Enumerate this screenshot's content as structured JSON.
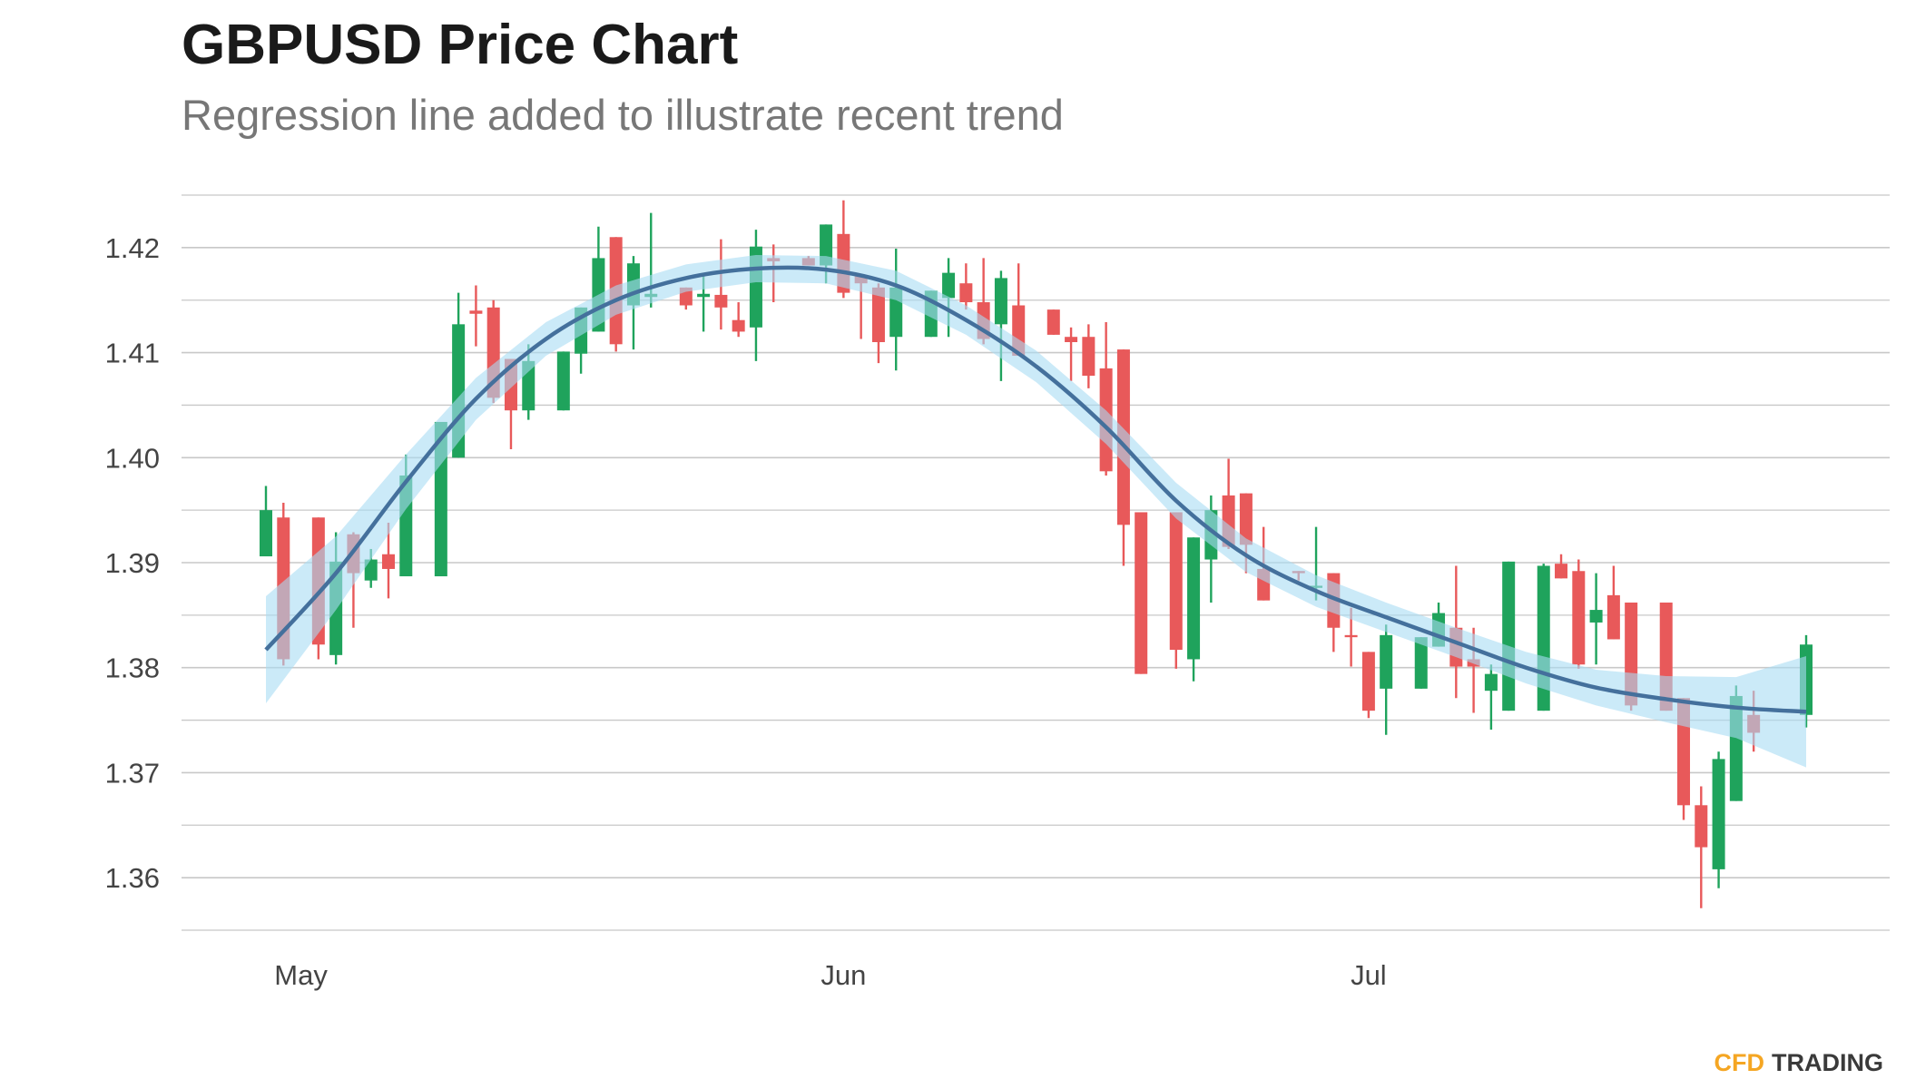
{
  "chart_data": {
    "type": "candlestick",
    "title": "GBPUSD Price Chart",
    "subtitle": "Regression line added to illustrate recent trend",
    "categories": [
      null,
      null,
      "May",
      null,
      null,
      null,
      null,
      null,
      null,
      null,
      null,
      null,
      null,
      null,
      null,
      null,
      null,
      null,
      null,
      null,
      null,
      null,
      null,
      null,
      null,
      null,
      null,
      null,
      null,
      null,
      null,
      null,
      null,
      "Jun",
      null,
      null,
      null,
      null,
      null,
      null,
      null,
      null,
      null,
      null,
      null,
      null,
      null,
      null,
      null,
      null,
      null,
      null,
      null,
      null,
      null,
      null,
      null,
      null,
      null,
      null,
      null,
      null,
      null,
      "Jul",
      null,
      null,
      null,
      null,
      null,
      null,
      null,
      null,
      null,
      null,
      null,
      null,
      null,
      null,
      null,
      null,
      null,
      null,
      null,
      null,
      null,
      null,
      null,
      null,
      null
    ],
    "open": [
      1.3906,
      1.3943,
      null,
      1.3943,
      1.3812,
      1.3927,
      1.3883,
      1.3908,
      1.3887,
      null,
      1.3887,
      1.4,
      1.414,
      1.4143,
      1.4094,
      1.4045,
      null,
      1.4045,
      1.4099,
      1.412,
      1.421,
      1.4145,
      1.4153,
      null,
      1.4162,
      1.4153,
      1.4155,
      1.4131,
      1.4124,
      1.419,
      null,
      1.419,
      1.4183,
      1.4213,
      1.4173,
      1.4162,
      1.4115,
      null,
      1.4115,
      1.4152,
      1.4166,
      1.4148,
      1.4127,
      1.4145,
      null,
      1.4141,
      1.4115,
      1.4115,
      1.4085,
      1.4103,
      1.3948,
      null,
      1.3948,
      1.3808,
      1.3903,
      1.3964,
      1.3966,
      1.3894,
      null,
      1.3892,
      1.3876,
      1.389,
      1.3831,
      1.3815,
      1.378,
      null,
      1.378,
      1.382,
      1.3838,
      1.3808,
      1.3778,
      1.3759,
      null,
      1.3759,
      1.3899,
      1.3892,
      1.3843,
      1.3869,
      1.3862,
      null,
      1.3862,
      1.3771,
      1.3669,
      1.3608,
      1.3673,
      1.3755,
      null,
      null,
      1.3755
    ],
    "high": [
      1.3973,
      1.3957,
      null,
      1.3943,
      1.3929,
      1.3929,
      1.3913,
      1.3938,
      1.4003,
      null,
      1.4034,
      1.4157,
      1.4164,
      1.415,
      1.4094,
      1.4108,
      null,
      1.4101,
      1.4143,
      1.422,
      1.421,
      1.4192,
      1.4233,
      null,
      1.4162,
      1.4173,
      1.4208,
      1.4148,
      1.4217,
      1.4203,
      null,
      1.4192,
      1.4222,
      1.4245,
      1.4173,
      1.4166,
      1.4199,
      null,
      1.4159,
      1.419,
      1.4185,
      1.419,
      1.4178,
      1.4185,
      null,
      1.4141,
      1.4124,
      1.4127,
      1.4129,
      1.4103,
      1.3948,
      null,
      1.3948,
      1.3924,
      1.3964,
      1.3999,
      1.3966,
      1.3934,
      null,
      1.3892,
      1.3934,
      1.389,
      1.3857,
      1.3815,
      1.3841,
      null,
      1.3829,
      1.3862,
      1.3897,
      1.3838,
      1.3803,
      1.3901,
      null,
      1.3899,
      1.3908,
      1.3903,
      1.389,
      1.3897,
      1.3862,
      null,
      1.3862,
      1.3771,
      1.3687,
      1.372,
      1.3783,
      1.3778,
      null,
      null,
      1.3831
    ],
    "low": [
      1.3906,
      1.3802,
      null,
      1.3808,
      1.3803,
      1.3838,
      1.3876,
      1.3866,
      1.3887,
      null,
      1.3887,
      1.4,
      1.4106,
      1.4052,
      1.4008,
      1.4036,
      null,
      1.4045,
      1.408,
      1.412,
      1.4101,
      1.4103,
      1.4143,
      null,
      1.4141,
      1.412,
      1.4122,
      1.4115,
      1.4092,
      1.4148,
      null,
      1.4183,
      1.4166,
      1.4152,
      1.4113,
      1.409,
      1.4083,
      null,
      1.4115,
      1.4115,
      1.4141,
      1.4108,
      1.4073,
      1.4097,
      null,
      1.4117,
      1.4073,
      1.4066,
      1.3983,
      1.3897,
      1.3794,
      null,
      1.3799,
      1.3787,
      1.3862,
      1.3913,
      1.389,
      1.3864,
      null,
      1.3883,
      1.3864,
      1.3815,
      1.3801,
      1.3752,
      1.3736,
      null,
      1.378,
      1.382,
      1.3771,
      1.3757,
      1.3741,
      1.3759,
      null,
      1.3759,
      1.3885,
      1.3799,
      1.3803,
      1.3827,
      1.3759,
      null,
      1.3759,
      1.3655,
      1.3571,
      1.359,
      1.3673,
      1.372,
      null,
      null,
      1.3743
    ],
    "close": [
      1.395,
      1.3808,
      null,
      1.3822,
      1.3901,
      1.389,
      1.3903,
      1.3894,
      1.3983,
      null,
      1.4034,
      1.4127,
      1.4137,
      1.4057,
      1.4045,
      1.4092,
      null,
      1.4101,
      1.4143,
      1.419,
      1.4108,
      1.4185,
      1.4156,
      null,
      1.4145,
      1.4156,
      1.4143,
      1.412,
      1.4201,
      1.4187,
      null,
      1.4183,
      1.4222,
      1.4157,
      1.4166,
      1.411,
      1.4162,
      null,
      1.4159,
      1.4176,
      1.4148,
      1.4113,
      1.4171,
      1.4097,
      null,
      1.4117,
      1.411,
      1.4078,
      1.3987,
      1.3936,
      1.3794,
      null,
      1.3817,
      1.3924,
      1.395,
      1.3915,
      1.3917,
      1.3864,
      null,
      1.389,
      1.3878,
      1.3838,
      1.3829,
      1.3759,
      1.3831,
      null,
      1.3829,
      1.3852,
      1.3801,
      1.3801,
      1.3794,
      1.3901,
      null,
      1.3897,
      1.3885,
      1.3803,
      1.3855,
      1.3827,
      1.3764,
      null,
      1.3759,
      1.3669,
      1.3629,
      1.3713,
      1.3773,
      1.3738,
      null,
      null,
      1.3822
    ],
    "up_color": "#1fa35c",
    "down_color": "#e8595a",
    "trend": {
      "color": "#44709c",
      "band_color": "#a9dcf3",
      "x": [
        0,
        4,
        8,
        12,
        16,
        20,
        24,
        28,
        32,
        36,
        40,
        44,
        48,
        52,
        56,
        60,
        64,
        68,
        72,
        76,
        80,
        84,
        88
      ],
      "values": [
        1.3817,
        1.389,
        1.3977,
        1.4056,
        1.4113,
        1.415,
        1.4171,
        1.418,
        1.4179,
        1.4164,
        1.4131,
        1.4087,
        1.4029,
        1.3959,
        1.3907,
        1.3873,
        1.3848,
        1.3824,
        1.38,
        1.3781,
        1.377,
        1.3762,
        1.3758
      ],
      "upper": [
        1.3868,
        1.3925,
        1.4003,
        1.4076,
        1.4129,
        1.4164,
        1.4184,
        1.4193,
        1.4192,
        1.4178,
        1.4145,
        1.4102,
        1.4045,
        1.3976,
        1.3923,
        1.3888,
        1.3862,
        1.3838,
        1.3815,
        1.3798,
        1.3792,
        1.3791,
        1.3811
      ],
      "lower": [
        1.3766,
        1.3855,
        1.3951,
        1.4036,
        1.4097,
        1.4136,
        1.4158,
        1.4167,
        1.4166,
        1.415,
        1.4117,
        1.4072,
        1.4013,
        1.3942,
        1.3891,
        1.3858,
        1.3834,
        1.381,
        1.3785,
        1.3764,
        1.3748,
        1.3733,
        1.3705
      ]
    },
    "ylim": [
      1.355,
      1.425
    ],
    "yticks": [
      1.36,
      1.37,
      1.38,
      1.39,
      {
        "value": 1.4,
        "label": "1.40"
      },
      1.41,
      1.42
    ],
    "minor_yticks": [
      1.355,
      1.365,
      1.375,
      1.385,
      1.395,
      1.405,
      1.415,
      1.425
    ],
    "grid": true
  },
  "brand": {
    "first": "CFD",
    "second": "TRADING"
  }
}
